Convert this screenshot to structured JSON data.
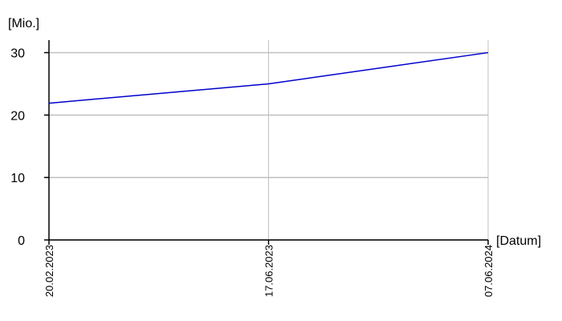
{
  "chart_data": {
    "type": "line",
    "y_label": "[Mio.]",
    "x_label": "[Datum]",
    "categories": [
      "20.02.2023",
      "17.06.2023",
      "07.06.2024"
    ],
    "values": [
      21.9,
      25.0,
      30.0
    ],
    "color": "#0000cc",
    "ylim": [
      0,
      32
    ],
    "yticks": [
      0,
      10,
      20,
      30
    ],
    "grid": true
  }
}
